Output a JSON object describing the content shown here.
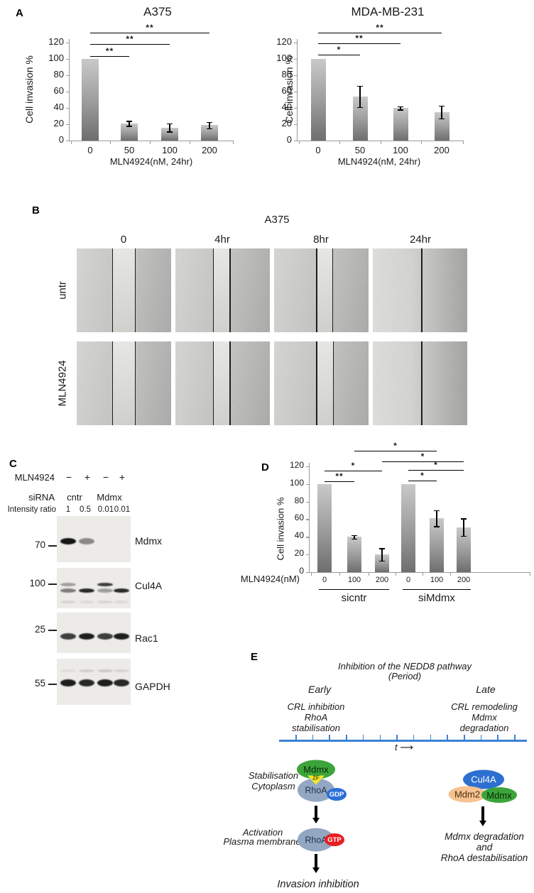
{
  "colors": {
    "timeline_blue": "#3b82d4",
    "mdmx_green": "#3ca43a",
    "zf_yellow": "#f1e72c",
    "rhoa_gray_blue": "#93a7c3",
    "gdp_blue": "#2d6fd8",
    "gtp_red": "#e71f1f",
    "cul4a_blue": "#2d6fd0",
    "mdm2_peach": "#f6c28f",
    "bar_gray_top": "#c9c9c9",
    "bar_gray_bottom": "#6e6e6e",
    "axis_gray": "#9a9a9a"
  },
  "panel_a": {
    "label": "A"
  },
  "panel_d": {
    "label": "D"
  },
  "chart_data": [
    {
      "id": "a375-invasion",
      "type": "bar",
      "title": "A375",
      "ylabel": "Cell invasion %",
      "xlabel": "MLN4924(nM, 24hr)",
      "categories": [
        "0",
        "50",
        "100",
        "200"
      ],
      "values": [
        100,
        21,
        16,
        19
      ],
      "errors": [
        0,
        3,
        5,
        4
      ],
      "yticks": [
        0,
        20,
        40,
        60,
        80,
        100,
        120
      ],
      "ylim": [
        0,
        120
      ],
      "grid": false,
      "significance": [
        {
          "a": 0,
          "b": 1,
          "label": "**"
        },
        {
          "a": 0,
          "b": 2,
          "label": "**"
        },
        {
          "a": 0,
          "b": 3,
          "label": "**"
        }
      ]
    },
    {
      "id": "mda-mb-231-invasion",
      "type": "bar",
      "title": "MDA-MB-231",
      "ylabel": "Cell invasion %",
      "xlabel": "MLN4924(nM, 24hr)",
      "categories": [
        "0",
        "50",
        "100",
        "200"
      ],
      "values": [
        100,
        54,
        40,
        35
      ],
      "errors": [
        0,
        13,
        2,
        8
      ],
      "yticks": [
        0,
        20,
        40,
        60,
        80,
        100,
        120
      ],
      "ylim": [
        0,
        120
      ],
      "grid": false,
      "significance": [
        {
          "a": 0,
          "b": 1,
          "label": "*"
        },
        {
          "a": 0,
          "b": 2,
          "label": "**"
        },
        {
          "a": 0,
          "b": 3,
          "label": "**"
        }
      ]
    },
    {
      "id": "sirna-invasion",
      "type": "bar",
      "title": "",
      "ylabel": "Cell invasion %",
      "xlabel": "MLN4924(nM)",
      "categories": [
        "0",
        "100",
        "200",
        "0",
        "100",
        "200"
      ],
      "values": [
        100,
        40,
        20,
        100,
        61,
        51
      ],
      "errors": [
        0,
        2,
        7,
        0,
        9,
        10
      ],
      "yticks": [
        0,
        20,
        40,
        60,
        80,
        100,
        120
      ],
      "ylim": [
        0,
        120
      ],
      "grid": false,
      "groups": [
        {
          "label": "sicntr",
          "from": 0,
          "to": 2
        },
        {
          "label": "siMdmx",
          "from": 3,
          "to": 5
        }
      ],
      "significance": [
        {
          "a": 0,
          "b": 1,
          "label": "**"
        },
        {
          "a": 0,
          "b": 2,
          "label": "*"
        },
        {
          "a": 3,
          "b": 4,
          "label": "*"
        },
        {
          "a": 3,
          "b": 5,
          "label": "*"
        },
        {
          "a": 1,
          "b": 4,
          "label": "*"
        },
        {
          "a": 2,
          "b": 5,
          "label": "*"
        }
      ]
    }
  ],
  "panel_b": {
    "label": "B",
    "title": "A375",
    "col_headers": [
      "0",
      "4hr",
      "8hr",
      "24hr"
    ],
    "row_labels": [
      "untr",
      "MLN4924"
    ],
    "images": [
      {
        "row": "untr",
        "time": "0",
        "lines": [
          0.38,
          0.62
        ]
      },
      {
        "row": "untr",
        "time": "4hr",
        "lines": [
          0.4,
          0.58
        ]
      },
      {
        "row": "untr",
        "time": "8hr",
        "lines": [
          0.45,
          0.62
        ]
      },
      {
        "row": "untr",
        "time": "24hr",
        "lines": [
          0.52
        ]
      },
      {
        "row": "MLN4924",
        "time": "0",
        "lines": [
          0.38,
          0.62
        ]
      },
      {
        "row": "MLN4924",
        "time": "4hr",
        "lines": [
          0.4,
          0.58
        ]
      },
      {
        "row": "MLN4924",
        "time": "8hr",
        "lines": [
          0.45,
          0.63
        ]
      },
      {
        "row": "MLN4924",
        "time": "24hr",
        "lines": [
          0.52
        ]
      }
    ]
  },
  "panel_c": {
    "label": "C",
    "rows": {
      "mln_label": "MLN4924",
      "mln_values": [
        "−",
        "+",
        "−",
        "+"
      ],
      "sirna_label": "siRNA",
      "sirna_values": [
        "cntr",
        "Mdmx"
      ],
      "intensity_label": "Intensity ratio",
      "intensity_values": [
        "1",
        "0.5",
        "0.01",
        "0.01"
      ]
    },
    "blots": [
      {
        "label": "Mdmx",
        "marker": "70",
        "rows": [
          {
            "dy": 31,
            "h": 9,
            "lanes": [
              1,
              0.45,
              0,
              0
            ]
          }
        ]
      },
      {
        "label": "Cul4A",
        "marker": "100",
        "rows": [
          {
            "dy": 21,
            "h": 5,
            "lanes": [
              0.35,
              0,
              0.8,
              0
            ]
          },
          {
            "dy": 29,
            "h": 6,
            "lanes": [
              0.5,
              0.9,
              0.35,
              0.9
            ]
          },
          {
            "dy": 46,
            "h": 4,
            "lanes": [
              0.1,
              0.08,
              0.1,
              0.08
            ]
          }
        ]
      },
      {
        "label": "Rac1",
        "marker": "25",
        "rows": [
          {
            "dy": 29,
            "h": 9,
            "lanes": [
              0.8,
              0.95,
              0.8,
              0.95
            ]
          }
        ]
      },
      {
        "label": "GAPDH",
        "marker": "55",
        "rows": [
          {
            "dy": 15,
            "h": 4,
            "lanes": [
              0.06,
              0.13,
              0.16,
              0.1
            ]
          },
          {
            "dy": 29,
            "h": 10,
            "lanes": [
              0.95,
              0.9,
              0.95,
              0.9
            ]
          }
        ]
      }
    ]
  },
  "panel_e": {
    "label": "E",
    "heading_line1": "Inhibition of the NEDD8 pathway",
    "heading_line2": "(Period)",
    "early_label": "Early",
    "late_label": "Late",
    "early_note": [
      "CRL inhibition",
      "RhoA",
      "stabilisation"
    ],
    "late_note": [
      "CRL remodeling",
      "Mdmx",
      "degradation"
    ],
    "t_label": "t",
    "t_arrow": "⟶",
    "timeline_tick_count": 14,
    "left_pathway": {
      "location_label_1": [
        "Stabilisation",
        "Cytoplasm"
      ],
      "mdmx": "Mdmx",
      "zf": "ZF",
      "rhoa_gdp": "RhoA",
      "gdp": "GDP",
      "location_label_2": [
        "Activation",
        "Plasma membrane"
      ],
      "rhoa_gtp": "RhoA",
      "gtp": "GTP",
      "outcome": "Invasion inhibition"
    },
    "right_pathway": {
      "cul4a": "Cul4A",
      "mdm2": "Mdm2",
      "mdmx": "Mdmx",
      "outcome": [
        "Mdmx degradation",
        "and",
        "RhoA destabilisation"
      ]
    }
  }
}
